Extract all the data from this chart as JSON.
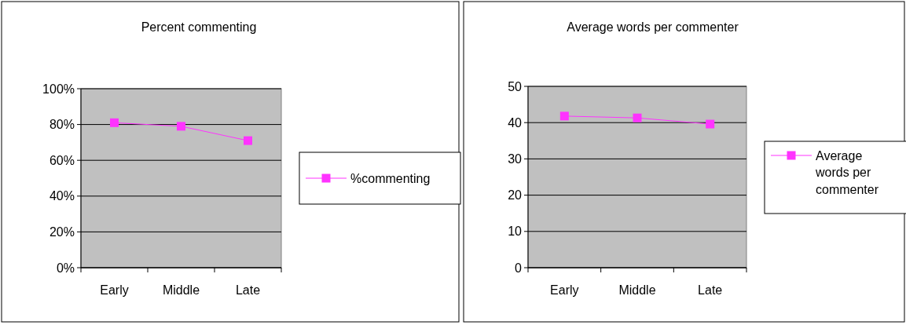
{
  "chart_data": [
    {
      "type": "line",
      "title": "Percent commenting",
      "categories": [
        "Early",
        "Middle",
        "Late"
      ],
      "series": [
        {
          "name": "%commenting",
          "color": "#ff33ff",
          "values": [
            81,
            79,
            71
          ]
        }
      ],
      "ylim": [
        0,
        100
      ],
      "yticks": [
        {
          "value": 0,
          "label": "0%"
        },
        {
          "value": 20,
          "label": "20%"
        },
        {
          "value": 40,
          "label": "40%"
        },
        {
          "value": 60,
          "label": "60%"
        },
        {
          "value": 80,
          "label": "80%"
        },
        {
          "value": 100,
          "label": "100%"
        }
      ],
      "grid": "y",
      "legend": "right",
      "marker": "square"
    },
    {
      "type": "line",
      "title": "Average words per commenter",
      "categories": [
        "Early",
        "Middle",
        "Late"
      ],
      "series": [
        {
          "name": "Average words per commenter",
          "color": "#ff33ff",
          "values": [
            41.8,
            41.3,
            39.6
          ]
        }
      ],
      "ylim": [
        0,
        50
      ],
      "yticks": [
        0,
        10,
        20,
        30,
        40,
        50
      ],
      "grid": "y",
      "legend": "right",
      "marker": "square"
    }
  ]
}
